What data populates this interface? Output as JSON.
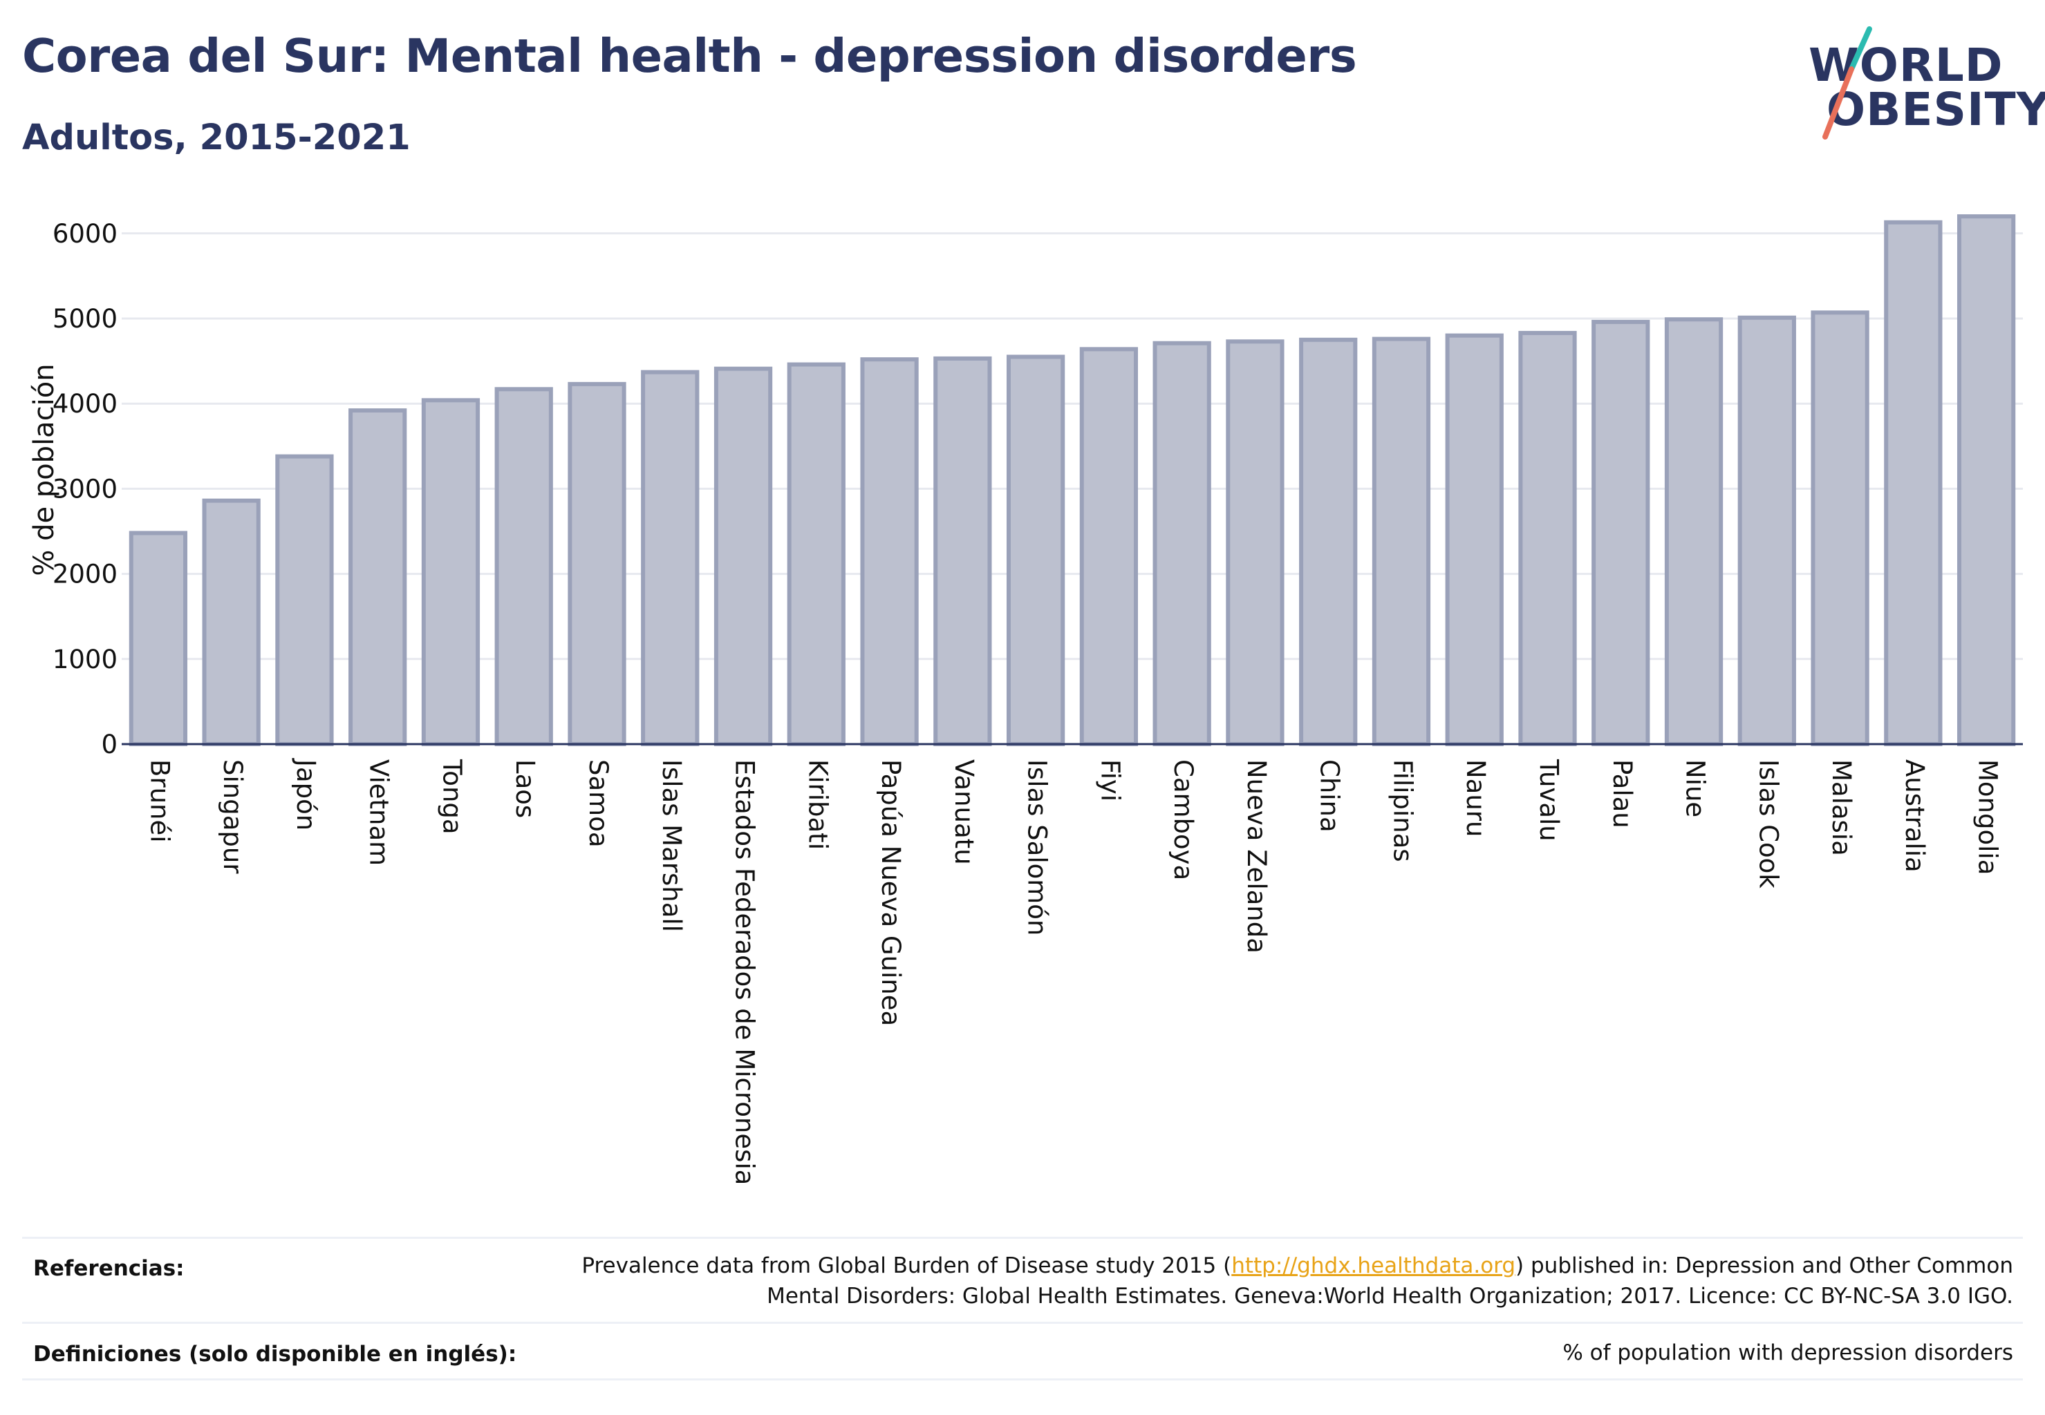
{
  "header": {
    "title": "Corea del Sur: Mental health - depression disorders",
    "subtitle": "Adultos, 2015-2021"
  },
  "logo": {
    "line1": "WORLD",
    "line2": "OBESITY",
    "colors": {
      "text": "#2a3561",
      "slash_top": "#2bbbb0",
      "slash_bottom": "#e8705a"
    }
  },
  "colors": {
    "bar_fill": "#bcc0cf",
    "bar_stroke": "#9aa1b9",
    "grid": "#e7e9ef",
    "axis": "#2a3561",
    "title": "#2a3561",
    "link": "#e8a317"
  },
  "chart_data": {
    "type": "bar",
    "title": "Corea del Sur: Mental health - depression disorders",
    "subtitle": "Adultos, 2015-2021",
    "ylabel": "% de población",
    "xlabel": "",
    "ylim": [
      0,
      6400
    ],
    "yticks": [
      0,
      1000,
      2000,
      3000,
      4000,
      5000,
      6000
    ],
    "grid": true,
    "categories": [
      "Brunéi",
      "Singapur",
      "Japón",
      "Vietnam",
      "Tonga",
      "Laos",
      "Samoa",
      "Islas Marshall",
      "Estados Federados de Micronesia",
      "Kiribati",
      "Papúa Nueva Guinea",
      "Vanuatu",
      "Islas Salomón",
      "Fiyi",
      "Camboya",
      "Nueva Zelanda",
      "China",
      "Filipinas",
      "Nauru",
      "Tuvalu",
      "Palau",
      "Niue",
      "Islas Cook",
      "Malasia",
      "Australia",
      "Mongolia"
    ],
    "values": [
      2480,
      2860,
      3380,
      3920,
      4040,
      4170,
      4230,
      4370,
      4410,
      4460,
      4520,
      4530,
      4550,
      4640,
      4710,
      4730,
      4750,
      4760,
      4800,
      4830,
      4960,
      4990,
      5010,
      5070,
      6130,
      6200
    ]
  },
  "footer": {
    "references_label": "Referencias:",
    "references_text_before": "Prevalence data from Global Burden of Disease study 2015 (",
    "references_link": "http://ghdx.healthdata.org",
    "references_text_after": ") published in: Depression and Other Common Mental Disorders: Global Health Estimates. Geneva:World Health Organization; 2017. Licence: CC BY-NC-SA 3.0 IGO.",
    "definitions_label": "Definiciones (solo disponible en inglés):",
    "definitions_text": "% of population with depression disorders"
  }
}
